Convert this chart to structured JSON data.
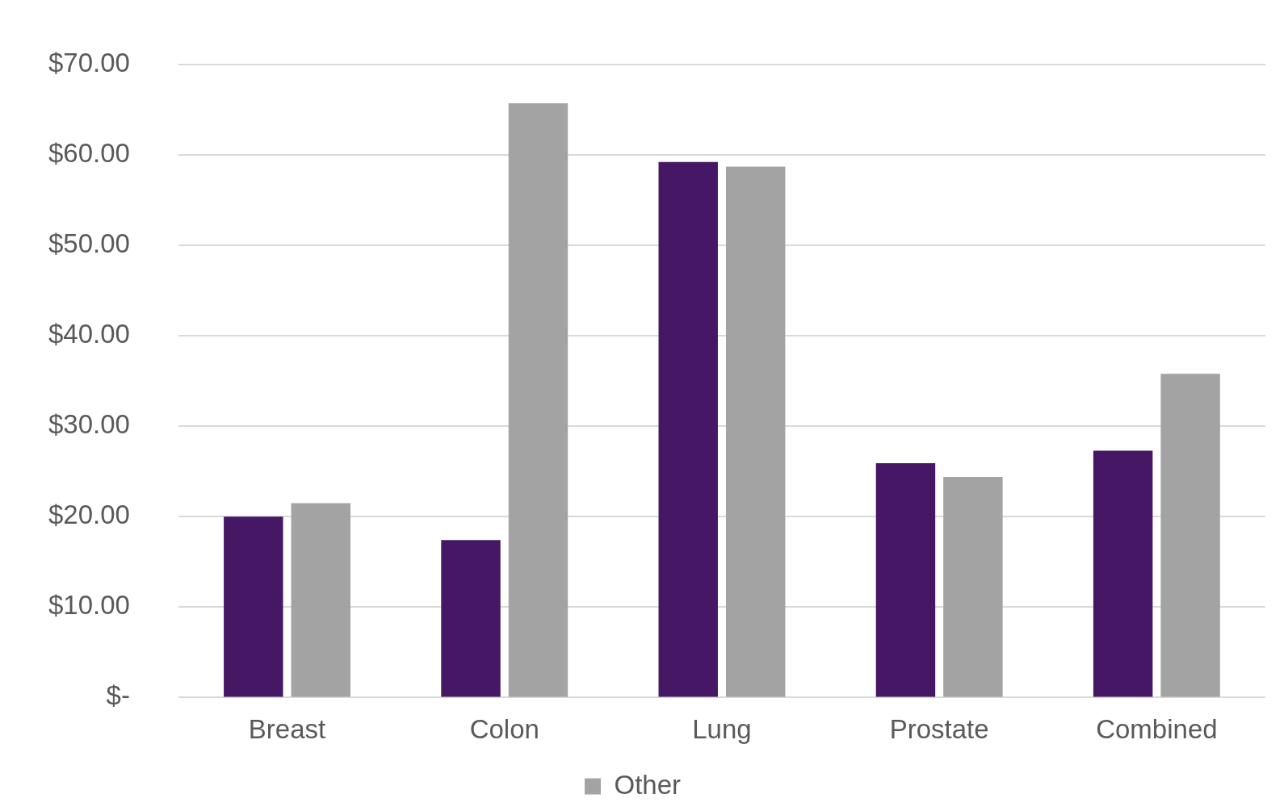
{
  "chart_data": {
    "type": "bar",
    "categories": [
      "Breast",
      "Colon",
      "Lung",
      "Prostate",
      "Combined"
    ],
    "series": [
      {
        "color": "#461764",
        "values": [
          20.0,
          17.4,
          59.2,
          25.9,
          27.3
        ]
      },
      {
        "name": "Other",
        "color": "#a3a3a4",
        "values": [
          21.5,
          65.7,
          58.7,
          24.4,
          35.8
        ]
      }
    ],
    "ylim": [
      0,
      70
    ],
    "yticks": [
      {
        "value": 0,
        "label": "$-"
      },
      {
        "value": 10,
        "label": "$10.00"
      },
      {
        "value": 20,
        "label": "$20.00"
      },
      {
        "value": 30,
        "label": "$30.00"
      },
      {
        "value": 40,
        "label": "$40.00"
      },
      {
        "value": 50,
        "label": "$50.00"
      },
      {
        "value": 60,
        "label": "$60.00"
      },
      {
        "value": 70,
        "label": "$70.00"
      }
    ],
    "grid": "y",
    "legend": "bottom"
  }
}
